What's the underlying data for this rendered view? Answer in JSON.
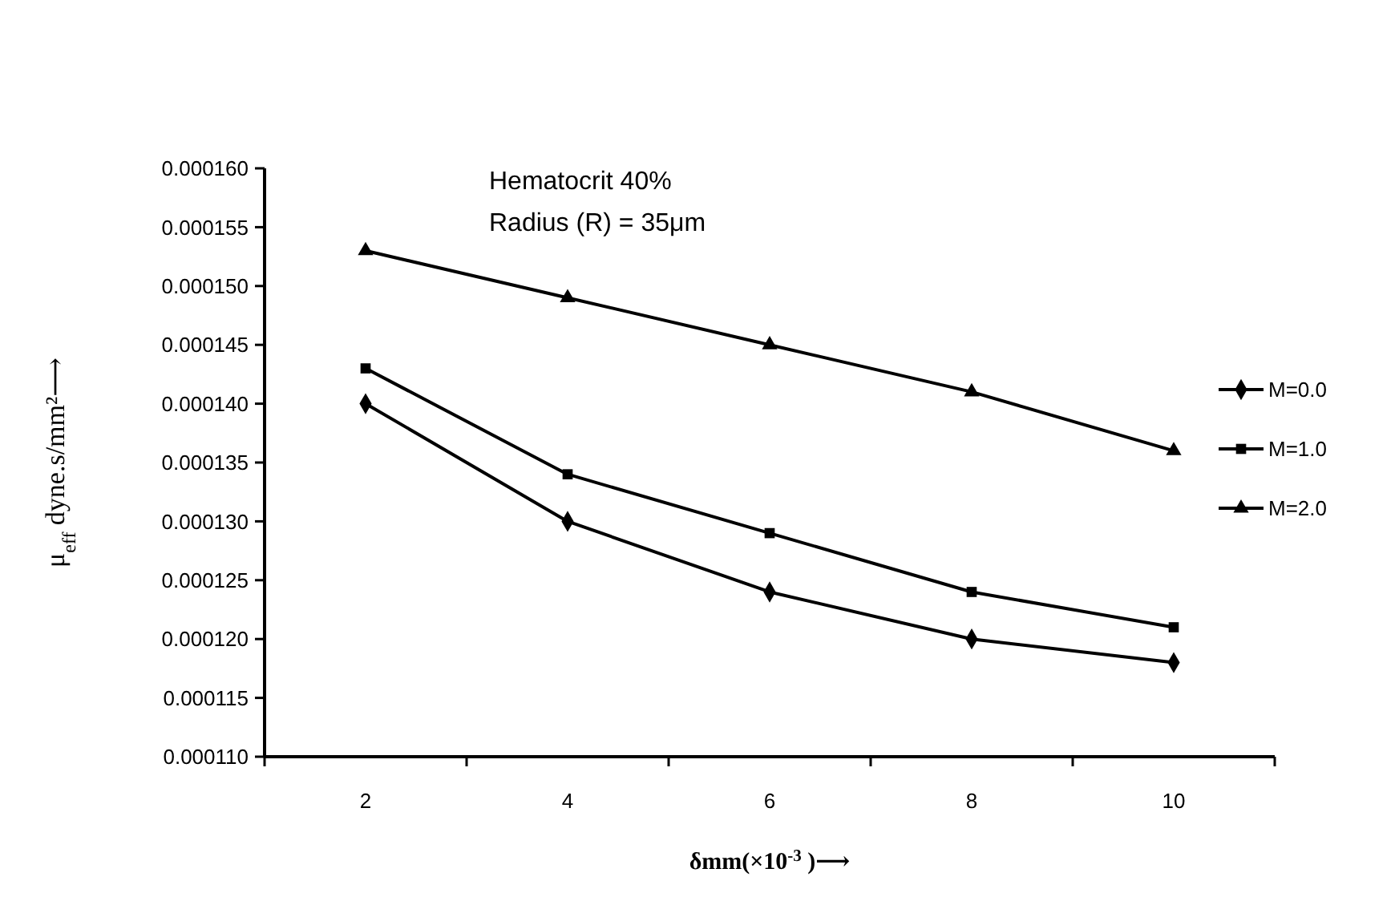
{
  "chart_data": {
    "type": "line",
    "xlabel": "δmm(×10$^{-3}$)⟶",
    "ylabel": "μ$_{eff}$ dyne.s/mm²⟶",
    "annotations": [
      "Hematocrit 40%",
      "Radius (R) = 35μm"
    ],
    "categories": [
      "2",
      "4",
      "6",
      "8",
      "10"
    ],
    "series": [
      {
        "name": "M=0.0",
        "color": "#000000",
        "marker": "diamond",
        "values": [
          0.00014,
          0.00013,
          0.000124,
          0.00012,
          0.000118
        ]
      },
      {
        "name": "M=1.0",
        "color": "#000000",
        "marker": "square",
        "values": [
          0.000143,
          0.000134,
          0.000129,
          0.000124,
          0.000121
        ]
      },
      {
        "name": "M=2.0",
        "color": "#000000",
        "marker": "triangle",
        "values": [
          0.000153,
          0.000149,
          0.000145,
          0.000141,
          0.000136
        ]
      }
    ],
    "ylim": [
      0.00011,
      0.00016
    ],
    "yticks": [
      {
        "value": 0.00011,
        "label": "0.000110"
      },
      {
        "value": 0.000115,
        "label": "0.000115"
      },
      {
        "value": 0.00012,
        "label": "0.000120"
      },
      {
        "value": 0.000125,
        "label": "0.000125"
      },
      {
        "value": 0.00013,
        "label": "0.000130"
      },
      {
        "value": 0.000135,
        "label": "0.000135"
      },
      {
        "value": 0.00014,
        "label": "0.000140"
      },
      {
        "value": 0.000145,
        "label": "0.000145"
      },
      {
        "value": 0.00015,
        "label": "0.000150"
      },
      {
        "value": 0.000155,
        "label": "0.000155"
      },
      {
        "value": 0.00016,
        "label": "0.000160"
      }
    ],
    "legend": "right",
    "line_style": "solid",
    "grid": false
  }
}
